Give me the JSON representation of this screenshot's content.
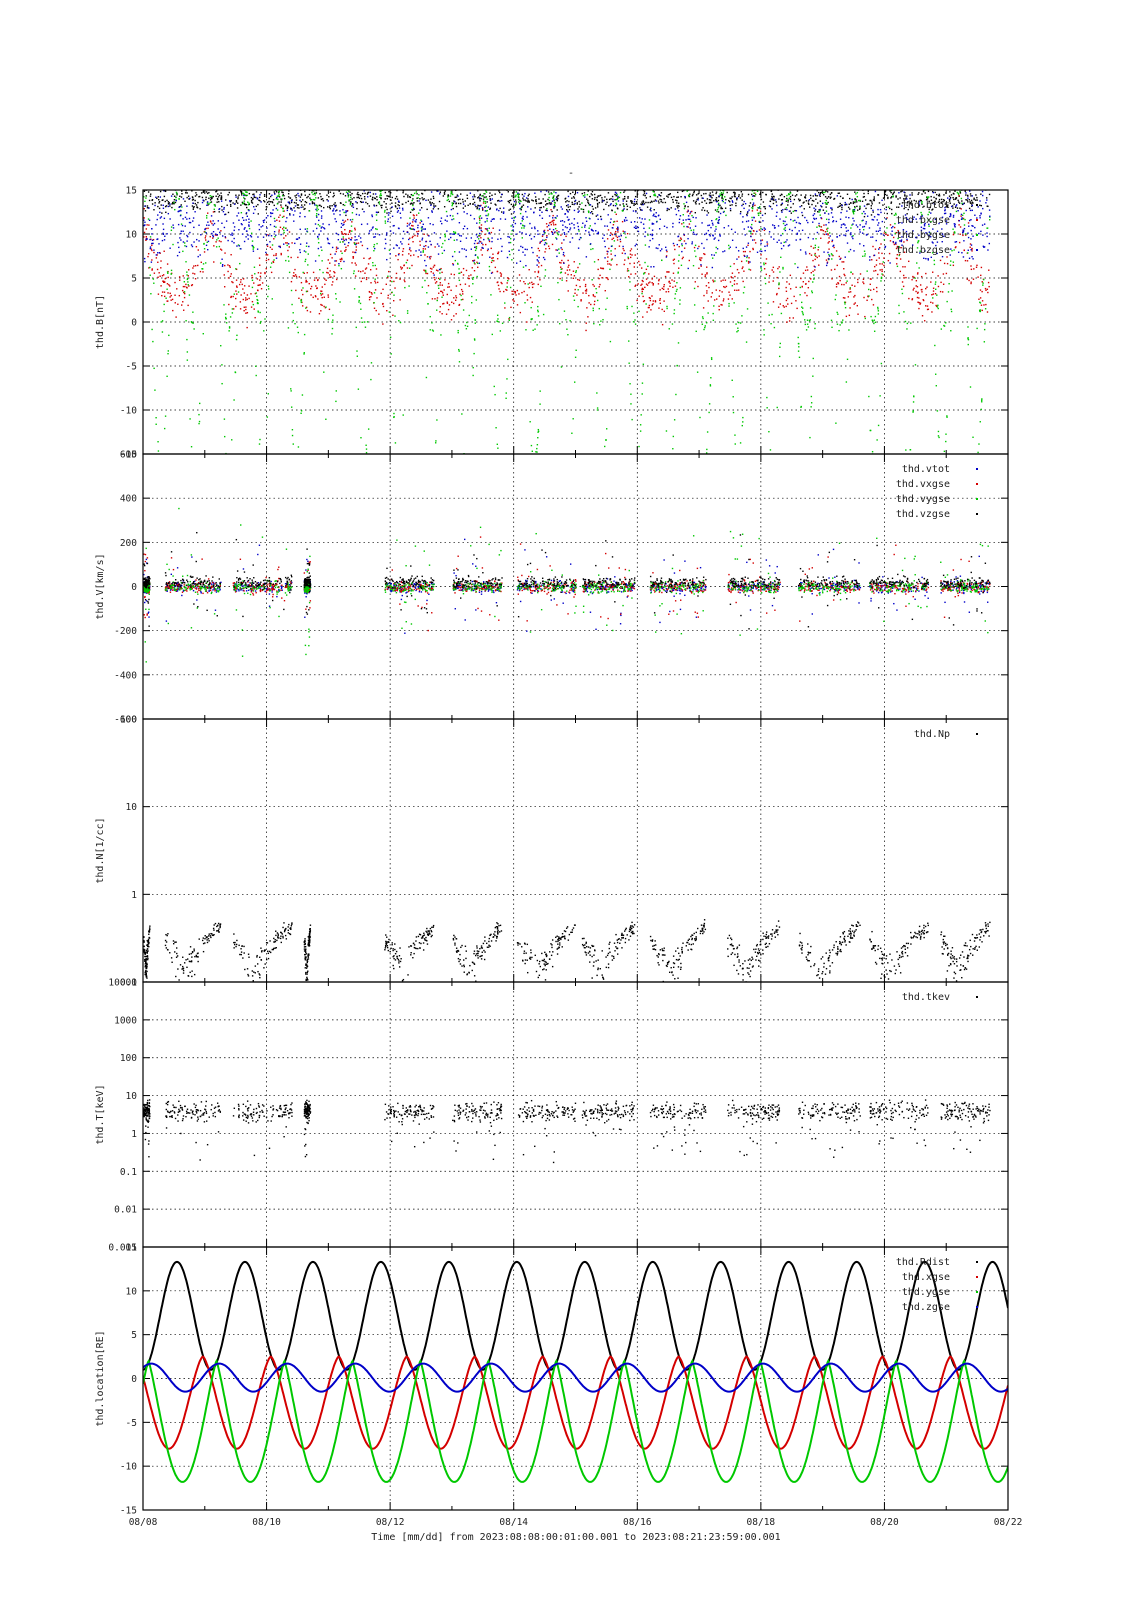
{
  "page": {
    "title": "-"
  },
  "x_axis": {
    "label": "Time [mm/dd]  from 2023:08:08:00:01:00.001  to  2023:08:21:23:59:00.001",
    "ticks": [
      "08/08",
      "08/10",
      "08/12",
      "08/14",
      "08/16",
      "08/18",
      "08/20",
      "08/22"
    ],
    "range_days": [
      0,
      14
    ]
  },
  "colors": {
    "black": "#000000",
    "red": "#d40000",
    "green": "#00c800",
    "blue": "#0000c8"
  },
  "chart_data": [
    {
      "type": "scatter",
      "ylabel": "thd.B[nT]",
      "ylim": [
        -15,
        15
      ],
      "ticks": [
        "15",
        "10",
        "5",
        "0",
        "-5",
        "-10",
        "-15"
      ],
      "grid": true,
      "legend_placement": "top-right",
      "series": [
        {
          "name": "thd.btot",
          "color": "black"
        },
        {
          "name": "thd.bxgse",
          "color": "red"
        },
        {
          "name": "thd.bygse",
          "color": "green"
        },
        {
          "name": "thd.bzgse",
          "color": "blue"
        }
      ]
    },
    {
      "type": "scatter",
      "ylabel": "thd.V[km/s]",
      "ylim": [
        -600,
        600
      ],
      "ticks": [
        "600",
        "400",
        "200",
        "0",
        "-200",
        "-400",
        "-600"
      ],
      "grid": true,
      "legend_placement": "top-right",
      "series": [
        {
          "name": "thd.vtot",
          "color": "blue"
        },
        {
          "name": "thd.vxgse",
          "color": "red"
        },
        {
          "name": "thd.vygse",
          "color": "green"
        },
        {
          "name": "thd.vzgse",
          "color": "black"
        }
      ]
    },
    {
      "type": "scatter",
      "ylabel": "thd.N[1/cc]",
      "ylim": [
        0.1,
        100
      ],
      "log_scale": true,
      "ticks": [
        "100",
        "10",
        "1",
        "0.1"
      ],
      "grid": true,
      "legend_placement": "top-right",
      "series": [
        {
          "name": "thd.Np",
          "color": "black"
        }
      ]
    },
    {
      "type": "scatter",
      "ylabel": "thd.T[keV]",
      "ylim": [
        0.001,
        10000
      ],
      "log_scale": true,
      "ticks": [
        "10000",
        "1000",
        "100",
        "10",
        "1",
        "0.1",
        "0.01",
        "0.001"
      ],
      "grid": true,
      "legend_placement": "top-right",
      "series": [
        {
          "name": "thd.tkev",
          "color": "black"
        }
      ]
    },
    {
      "type": "line",
      "ylabel": "thd.location[RE]",
      "ylim": [
        -15,
        15
      ],
      "ticks": [
        "15",
        "10",
        "5",
        "0",
        "-5",
        "-10",
        "-15"
      ],
      "grid": true,
      "legend_placement": "top-right",
      "orbit_period_days": 1.1,
      "series": [
        {
          "name": "thd.Rdist",
          "color": "black",
          "range_in_RE": [
            1,
            13.3
          ]
        },
        {
          "name": "thd.xgse",
          "color": "red",
          "range_in_RE": [
            -8,
            2.5
          ]
        },
        {
          "name": "thd.ygse",
          "color": "green",
          "range_in_RE": [
            -11.8,
            2
          ]
        },
        {
          "name": "thd.zgse",
          "color": "blue",
          "range_in_RE": [
            -1.5,
            1.7
          ]
        }
      ]
    }
  ]
}
